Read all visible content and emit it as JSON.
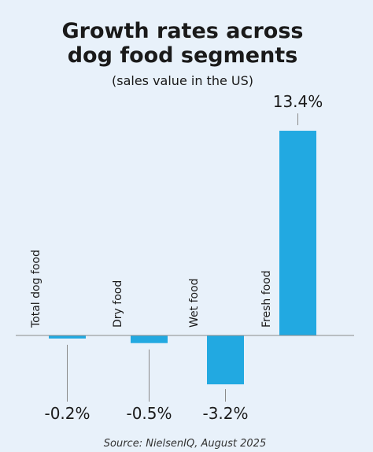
{
  "chart_data": {
    "type": "bar",
    "title_lines": [
      "Growth rates across",
      "dog food segments"
    ],
    "subtitle": "(sales value in the US)",
    "categories": [
      "Total dog food",
      "Dry food",
      "Wet food",
      "Fresh food"
    ],
    "values": [
      -0.2,
      -0.5,
      -3.2,
      13.4
    ],
    "value_labels": [
      "-0.2%",
      "-0.5%",
      "-3.2%",
      "13.4%"
    ],
    "ylim": [
      -3.2,
      13.4
    ],
    "grid": false,
    "legend": "none",
    "source": "Source: NielsenIQ, August 2025"
  },
  "colors": {
    "background": "#e8f1fa",
    "bar": "#22a9e1",
    "baseline": "#8a8a8a",
    "leader": "#8a8a8a",
    "text": "#1a1a1a"
  }
}
